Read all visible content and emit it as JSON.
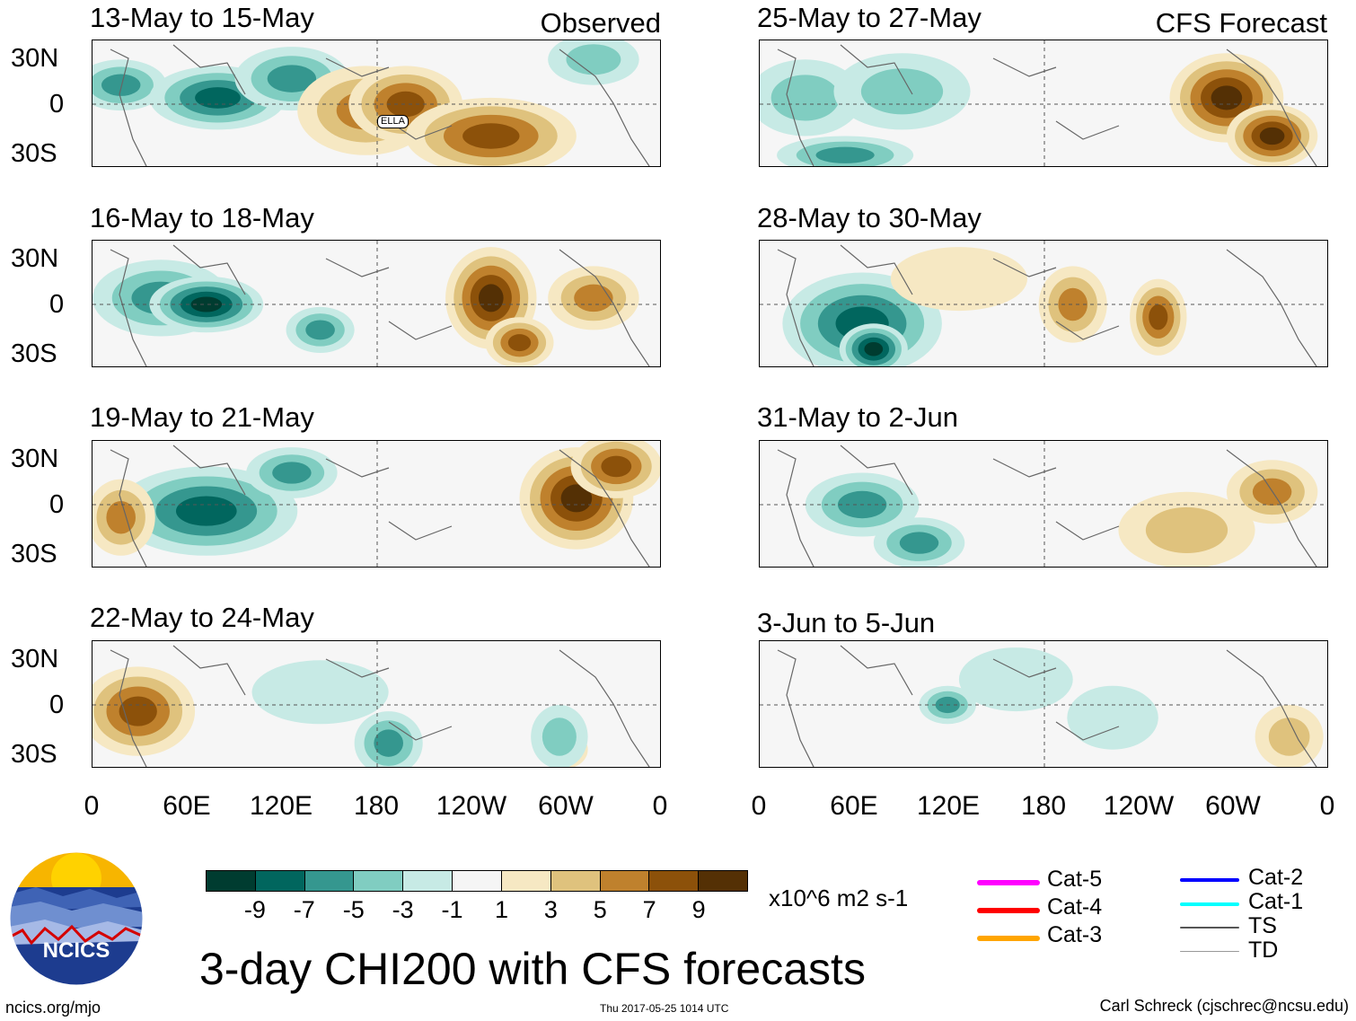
{
  "header": {
    "observed_label": "Observed",
    "forecast_label": "CFS Forecast"
  },
  "panels": [
    {
      "title": "13-May to 15-May",
      "storm_label": "ELLA"
    },
    {
      "title": "16-May to 18-May"
    },
    {
      "title": "19-May to 21-May"
    },
    {
      "title": "22-May to 24-May"
    },
    {
      "title": "25-May to 27-May"
    },
    {
      "title": "28-May to 30-May"
    },
    {
      "title": "31-May to 2-Jun"
    },
    {
      "title": "3-Jun to 5-Jun"
    }
  ],
  "axes": {
    "lat_labels": [
      "30N",
      "0",
      "30S"
    ],
    "lon_labels": [
      "0",
      "60E",
      "120E",
      "180",
      "120W",
      "60W",
      "0"
    ]
  },
  "colorbar": {
    "colors": [
      "#003c30",
      "#01665e",
      "#35978f",
      "#80cdc1",
      "#c7eae5",
      "#f5f5f5",
      "#f6e8c3",
      "#dfc27d",
      "#bf812d",
      "#8c510a",
      "#543005"
    ],
    "ticks": [
      "-9",
      "-7",
      "-5",
      "-3",
      "-1",
      "1",
      "3",
      "5",
      "7",
      "9"
    ],
    "units": "x10^6 m2 s-1"
  },
  "legend": {
    "items": [
      {
        "label": "Cat-5",
        "color": "#ff00ff"
      },
      {
        "label": "Cat-4",
        "color": "#ff0000"
      },
      {
        "label": "Cat-3",
        "color": "#ffa500"
      },
      {
        "label": "Cat-2",
        "color": "#0000ff"
      },
      {
        "label": "Cat-1",
        "color": "#00ffff"
      },
      {
        "label": "TS",
        "color": "#555555"
      },
      {
        "label": "TD",
        "color": "#999999"
      }
    ]
  },
  "logo": {
    "text": "NCICS"
  },
  "title": "3-day CHI200 with CFS forecasts",
  "footer": {
    "url": "ncics.org/mjo",
    "timestamp": "Thu 2017-05-25 1014 UTC",
    "author": "Carl Schreck (cjschrec@ncsu.edu)"
  }
}
